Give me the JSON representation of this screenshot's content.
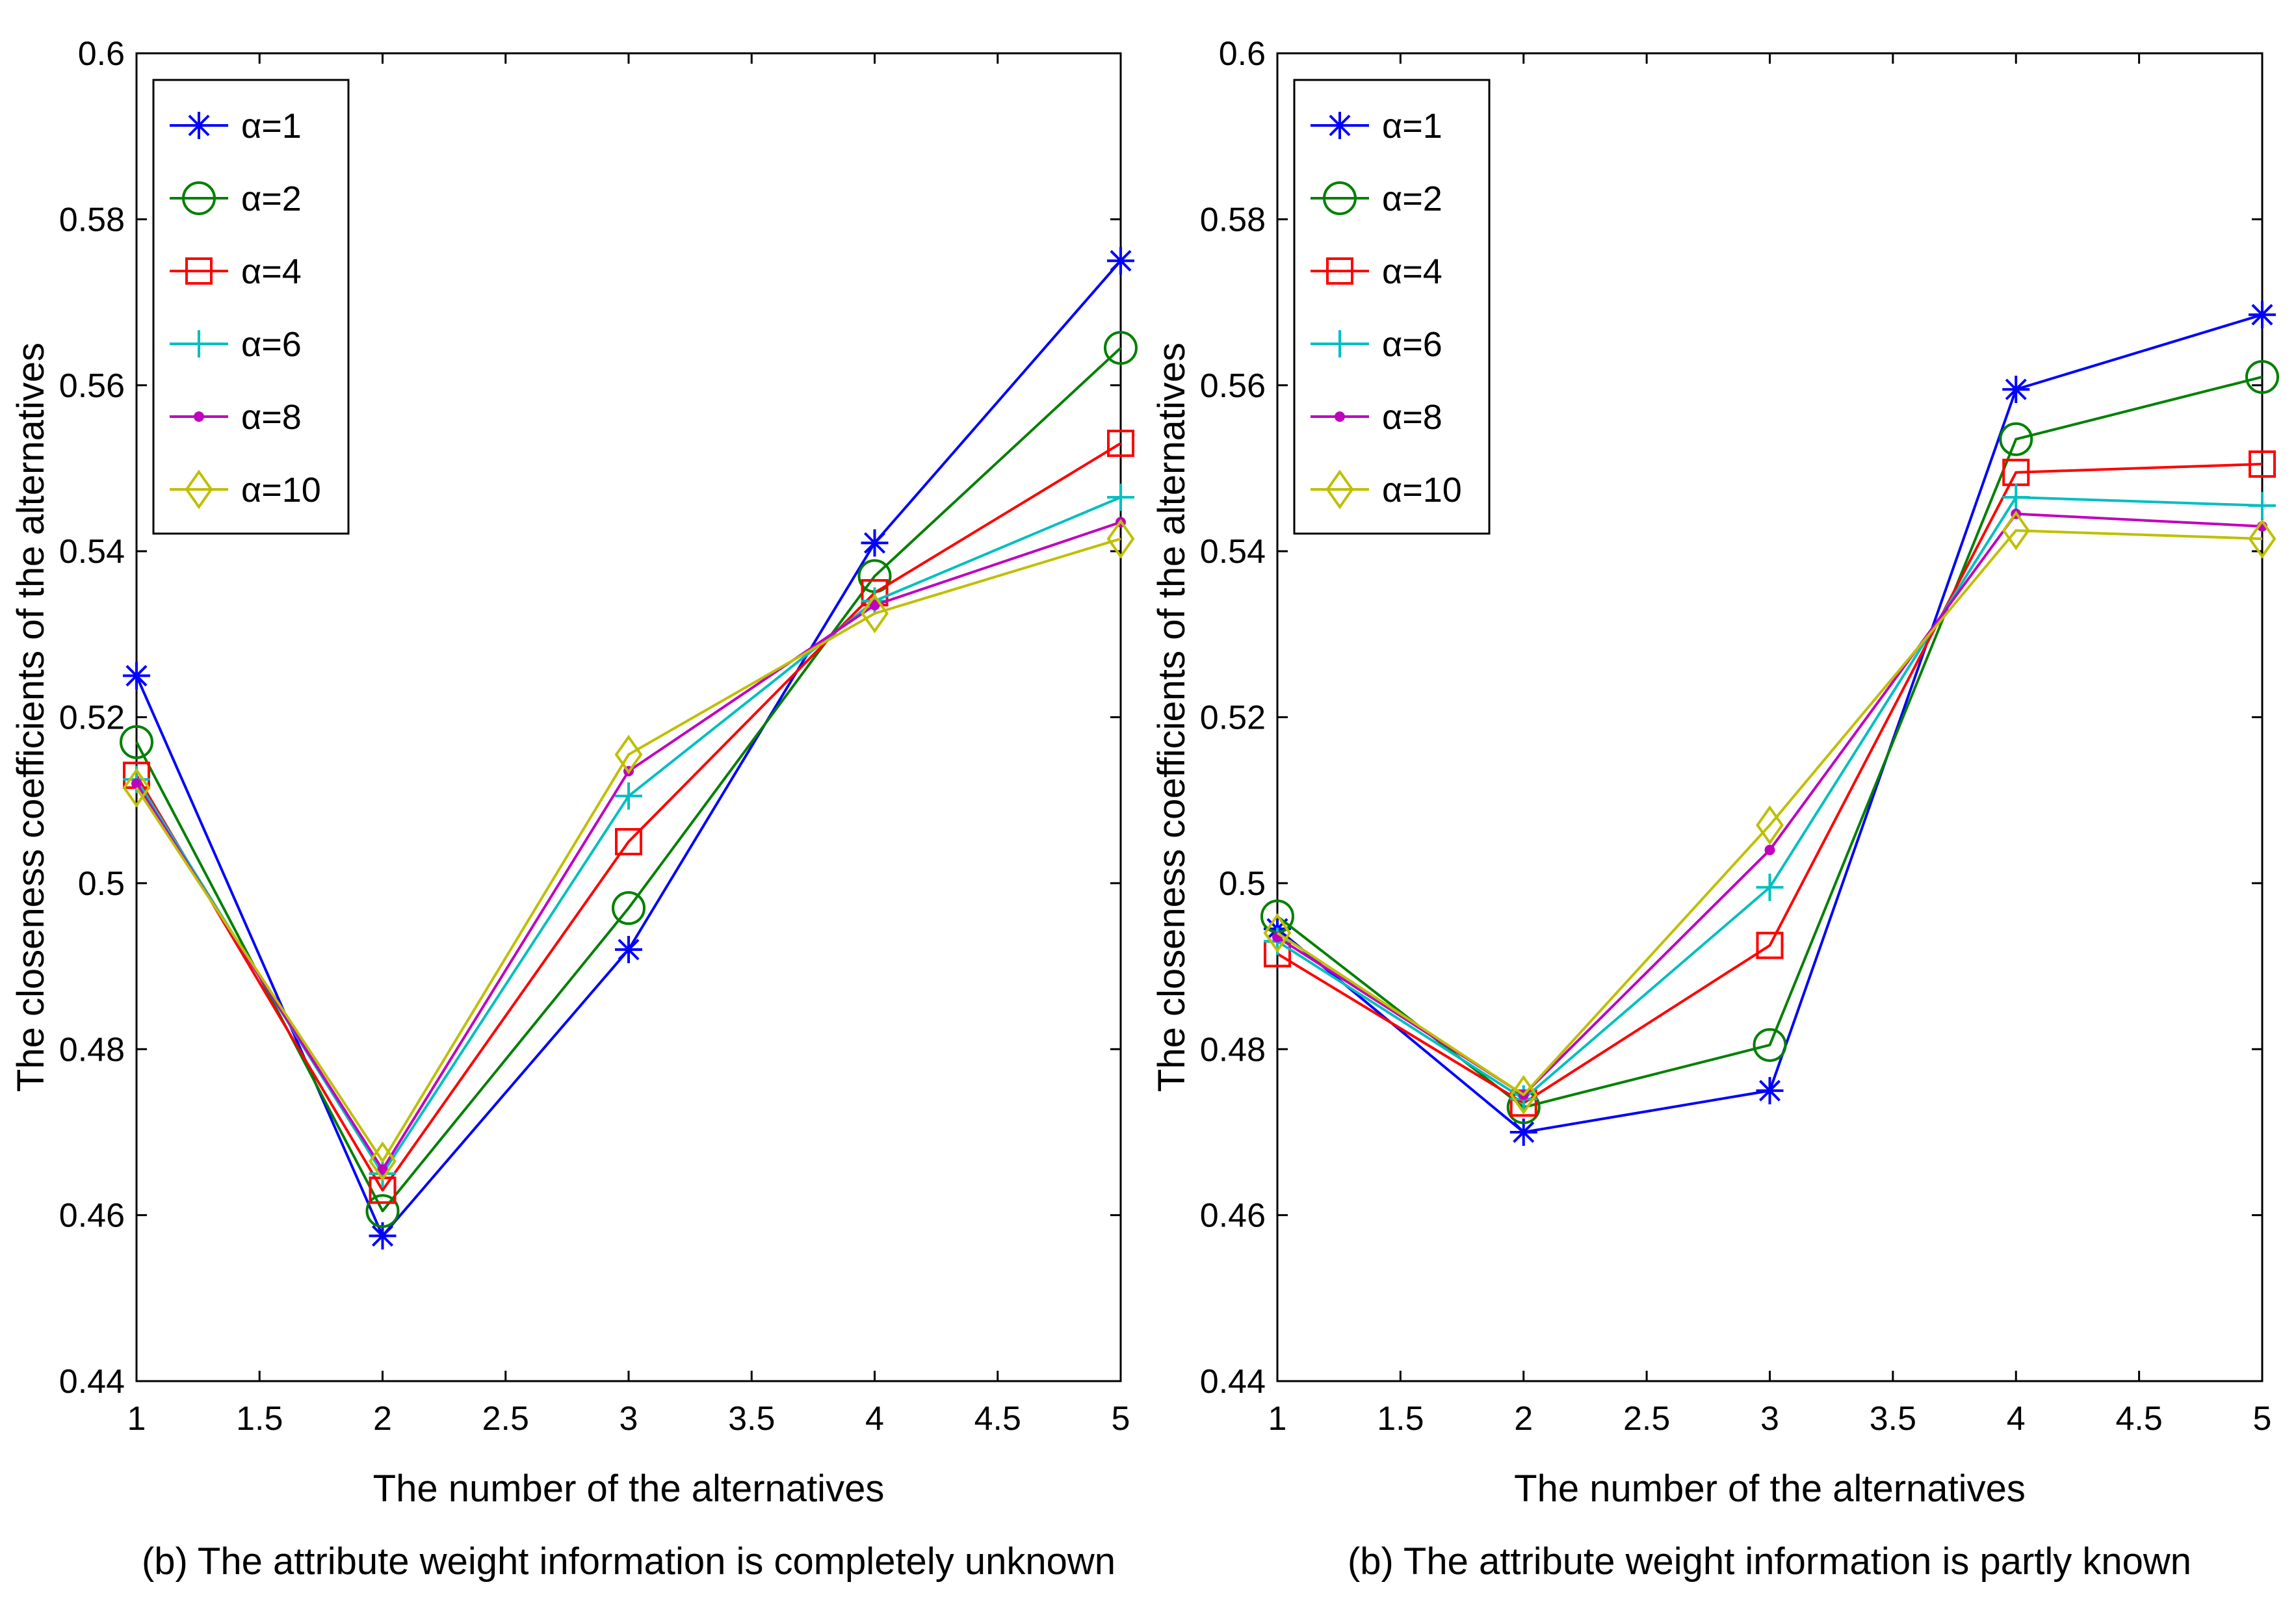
{
  "chart_data": [
    {
      "type": "line",
      "caption": "(b) The attribute weight information is completely unknown",
      "xlabel": "The number of the alternatives",
      "ylabel": "The closeness coefficients of the alternatives",
      "xlim": [
        1,
        5
      ],
      "ylim": [
        0.44,
        0.6
      ],
      "xticks": [
        1,
        1.5,
        2,
        2.5,
        3,
        3.5,
        4,
        4.5,
        5
      ],
      "xtick_labels": [
        "1",
        "1.5",
        "2",
        "2.5",
        "3",
        "3.5",
        "4",
        "4.5",
        "5"
      ],
      "yticks": [
        0.44,
        0.46,
        0.48,
        0.5,
        0.52,
        0.54,
        0.56,
        0.58,
        0.6
      ],
      "ytick_labels": [
        "0.44",
        "0.46",
        "0.48",
        "0.5",
        "0.52",
        "0.54",
        "0.56",
        "0.58",
        "0.6"
      ],
      "legend_position": "top-left",
      "x": [
        1,
        2,
        3,
        4,
        5
      ],
      "series": [
        {
          "name": "α=1",
          "color": "#0000ff",
          "marker": "asterisk",
          "values": [
            0.525,
            0.4575,
            0.492,
            0.541,
            0.575
          ]
        },
        {
          "name": "α=2",
          "color": "#008000",
          "marker": "circle",
          "values": [
            0.517,
            0.4605,
            0.497,
            0.537,
            0.5645
          ]
        },
        {
          "name": "α=4",
          "color": "#ff0000",
          "marker": "square",
          "values": [
            0.513,
            0.463,
            0.505,
            0.535,
            0.553
          ]
        },
        {
          "name": "α=6",
          "color": "#00bfbf",
          "marker": "plus",
          "values": [
            0.5125,
            0.465,
            0.5105,
            0.534,
            0.5465
          ]
        },
        {
          "name": "α=8",
          "color": "#bf00bf",
          "marker": "dot",
          "values": [
            0.512,
            0.4655,
            0.5135,
            0.5335,
            0.5435
          ]
        },
        {
          "name": "α=10",
          "color": "#bfbf00",
          "marker": "diamond",
          "values": [
            0.5115,
            0.4665,
            0.5155,
            0.5325,
            0.5415
          ]
        }
      ]
    },
    {
      "type": "line",
      "caption": "(b) The attribute weight information is partly known",
      "xlabel": "The number of the alternatives",
      "ylabel": "The closeness coefficients of the alternatives",
      "xlim": [
        1,
        5
      ],
      "ylim": [
        0.44,
        0.6
      ],
      "xticks": [
        1,
        1.5,
        2,
        2.5,
        3,
        3.5,
        4,
        4.5,
        5
      ],
      "xtick_labels": [
        "1",
        "1.5",
        "2",
        "2.5",
        "3",
        "3.5",
        "4",
        "4.5",
        "5"
      ],
      "yticks": [
        0.44,
        0.46,
        0.48,
        0.5,
        0.52,
        0.54,
        0.56,
        0.58,
        0.6
      ],
      "ytick_labels": [
        "0.44",
        "0.46",
        "0.48",
        "0.5",
        "0.52",
        "0.54",
        "0.56",
        "0.58",
        "0.6"
      ],
      "legend_position": "top-left",
      "x": [
        1,
        2,
        3,
        4,
        5
      ],
      "series": [
        {
          "name": "α=1",
          "color": "#0000ff",
          "marker": "asterisk",
          "values": [
            0.4945,
            0.47,
            0.475,
            0.5595,
            0.5685
          ]
        },
        {
          "name": "α=2",
          "color": "#008000",
          "marker": "circle",
          "values": [
            0.496,
            0.473,
            0.4805,
            0.5535,
            0.561
          ]
        },
        {
          "name": "α=4",
          "color": "#ff0000",
          "marker": "square",
          "values": [
            0.4915,
            0.4735,
            0.4925,
            0.5495,
            0.5505
          ]
        },
        {
          "name": "α=6",
          "color": "#00bfbf",
          "marker": "plus",
          "values": [
            0.493,
            0.474,
            0.4995,
            0.5465,
            0.5455
          ]
        },
        {
          "name": "α=8",
          "color": "#bf00bf",
          "marker": "dot",
          "values": [
            0.4935,
            0.4745,
            0.504,
            0.5445,
            0.543
          ]
        },
        {
          "name": "α=10",
          "color": "#bfbf00",
          "marker": "diamond",
          "values": [
            0.494,
            0.4745,
            0.507,
            0.5425,
            0.5415
          ]
        }
      ]
    }
  ]
}
